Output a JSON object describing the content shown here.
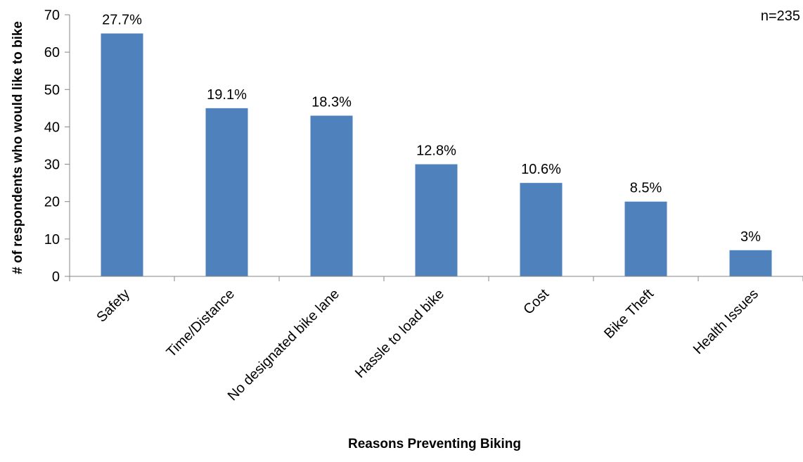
{
  "chart_data": {
    "type": "bar",
    "categories": [
      "Safety",
      "Time/Distance",
      "No designated bike lane",
      "Hassle to load bike",
      "Cost",
      "Bike Theft",
      "Health Issues"
    ],
    "values": [
      65,
      45,
      43,
      30,
      25,
      20,
      7
    ],
    "data_labels": [
      "27.7%",
      "19.1%",
      "18.3%",
      "12.8%",
      "10.6%",
      "8.5%",
      "3%"
    ],
    "title": "",
    "xlabel": "Reasons Preventing Biking",
    "ylabel": "# of respondents  who would like to bike",
    "ylim": [
      0,
      70
    ],
    "yticks": [
      0,
      10,
      20,
      30,
      40,
      50,
      60,
      70
    ],
    "annotation": "n=235",
    "grid": false,
    "legend": "none",
    "colors": {
      "bar": "#4F81BD",
      "axis": "#868686",
      "text": "#000000"
    }
  }
}
